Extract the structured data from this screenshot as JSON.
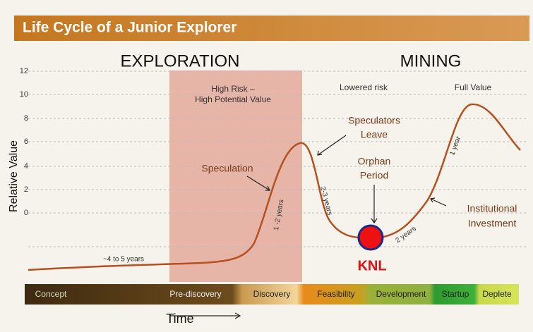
{
  "header": {
    "title": "Life Cycle of a Junior Explorer"
  },
  "sections": [
    "EXPLORATION",
    "MINING"
  ],
  "y_axis": {
    "label": "Relative Value",
    "ticks": [
      "12",
      "10",
      "8",
      "6",
      "4",
      "2",
      "0"
    ]
  },
  "x_axis": {
    "label": "Time"
  },
  "annotations": {
    "high_risk": [
      "High Risk –",
      "High Potential Value"
    ],
    "lowered_risk": "Lowered risk",
    "full_value": "Full Value",
    "speculators_leave": [
      "Speculators",
      "Leave"
    ],
    "speculation": "Speculation",
    "orphan_period": [
      "Orphan",
      "Period"
    ],
    "institutional": [
      "Institutional",
      "Investment"
    ],
    "durations": [
      "~4 to 5 years",
      "1 -2 years",
      "2-3 years",
      "2 years",
      "1 year"
    ]
  },
  "marker": "KNL",
  "phases": [
    "Concept",
    "Pre-discovery",
    "Discovery",
    "Feasibility",
    "Development",
    "Startup",
    "Deplete"
  ]
}
